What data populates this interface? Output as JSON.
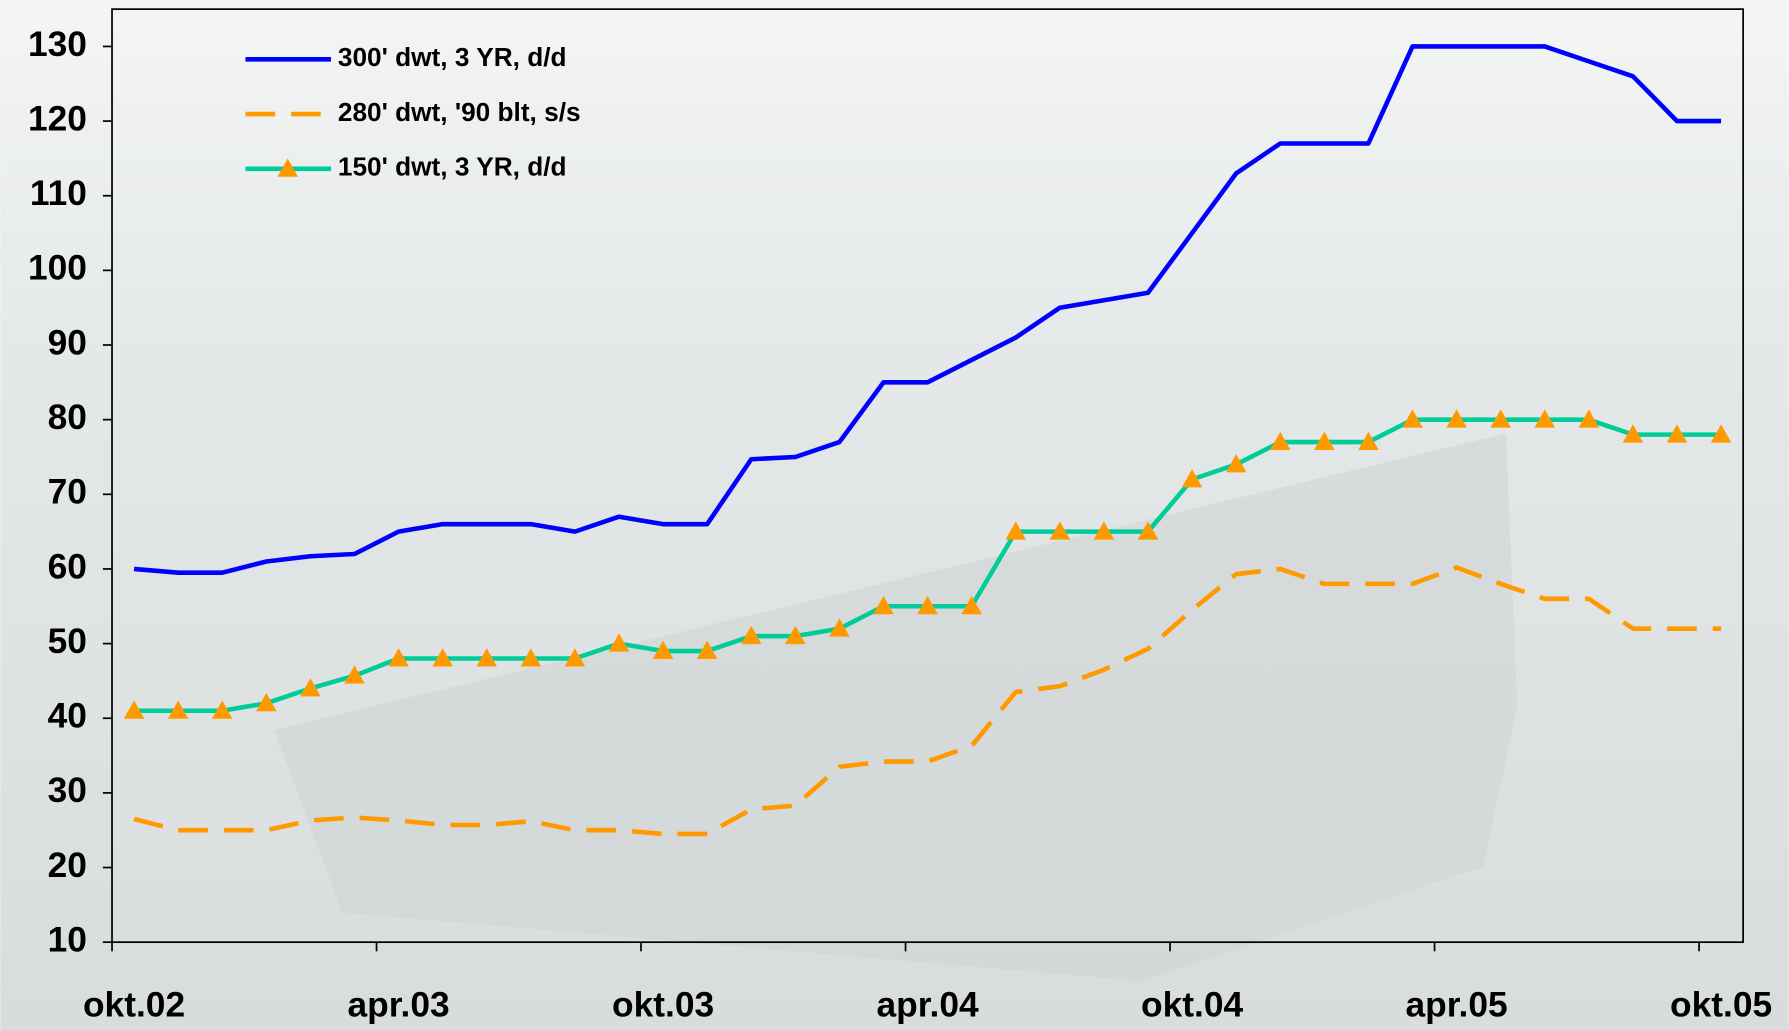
{
  "chart_data": {
    "type": "line",
    "categories": [
      "okt.02",
      null,
      null,
      null,
      null,
      null,
      "apr.03",
      null,
      null,
      null,
      null,
      null,
      "okt.03",
      null,
      null,
      null,
      null,
      null,
      "apr.04",
      null,
      null,
      null,
      null,
      null,
      "okt.04",
      null,
      null,
      null,
      null,
      null,
      "apr.05",
      null,
      null,
      null,
      null,
      null,
      "okt.05"
    ],
    "series": [
      {
        "name": "300' dwt, 3 YR, d/d",
        "color": "#0000ff",
        "style": "solid",
        "marker": "none",
        "values": [
          60,
          59.5,
          59.5,
          61,
          61.7,
          62,
          65,
          66,
          66,
          66,
          65,
          67,
          66,
          66,
          74.7,
          75,
          77,
          85,
          85,
          88,
          91,
          95,
          96,
          97,
          105,
          113,
          117,
          117,
          117,
          130,
          130,
          130,
          130,
          128,
          126,
          120,
          120
        ]
      },
      {
        "name": "280' dwt, '90 blt, s/s",
        "color": "#ff9900",
        "style": "dashed",
        "marker": "none",
        "values": [
          26.5,
          25,
          25,
          25,
          26.3,
          26.7,
          26.3,
          25.7,
          25.7,
          26.2,
          25,
          25,
          24.5,
          24.5,
          27.8,
          28.3,
          33.5,
          34.2,
          34.2,
          36.3,
          43.5,
          44.3,
          46.5,
          49.3,
          54.5,
          59.3,
          60,
          58,
          58,
          58,
          60.2,
          58,
          56,
          56,
          52,
          52,
          52
        ]
      },
      {
        "name": "150' dwt, 3 YR, d/d",
        "color": "#00cc99",
        "style": "solid",
        "marker": "triangle",
        "marker_color": "#ff9900",
        "values": [
          41,
          41,
          41,
          42,
          44,
          45.7,
          48,
          48,
          48,
          48,
          48,
          50,
          49,
          49,
          51,
          51,
          52,
          55,
          55,
          55,
          65,
          65,
          65,
          65,
          72,
          74,
          77,
          77,
          77,
          80,
          80,
          80,
          80,
          80,
          78,
          78,
          78
        ]
      }
    ],
    "ylim": [
      10,
      135
    ],
    "yticks": [
      10,
      20,
      30,
      40,
      50,
      60,
      70,
      80,
      90,
      100,
      110,
      120,
      130
    ],
    "legend": "top-left"
  }
}
